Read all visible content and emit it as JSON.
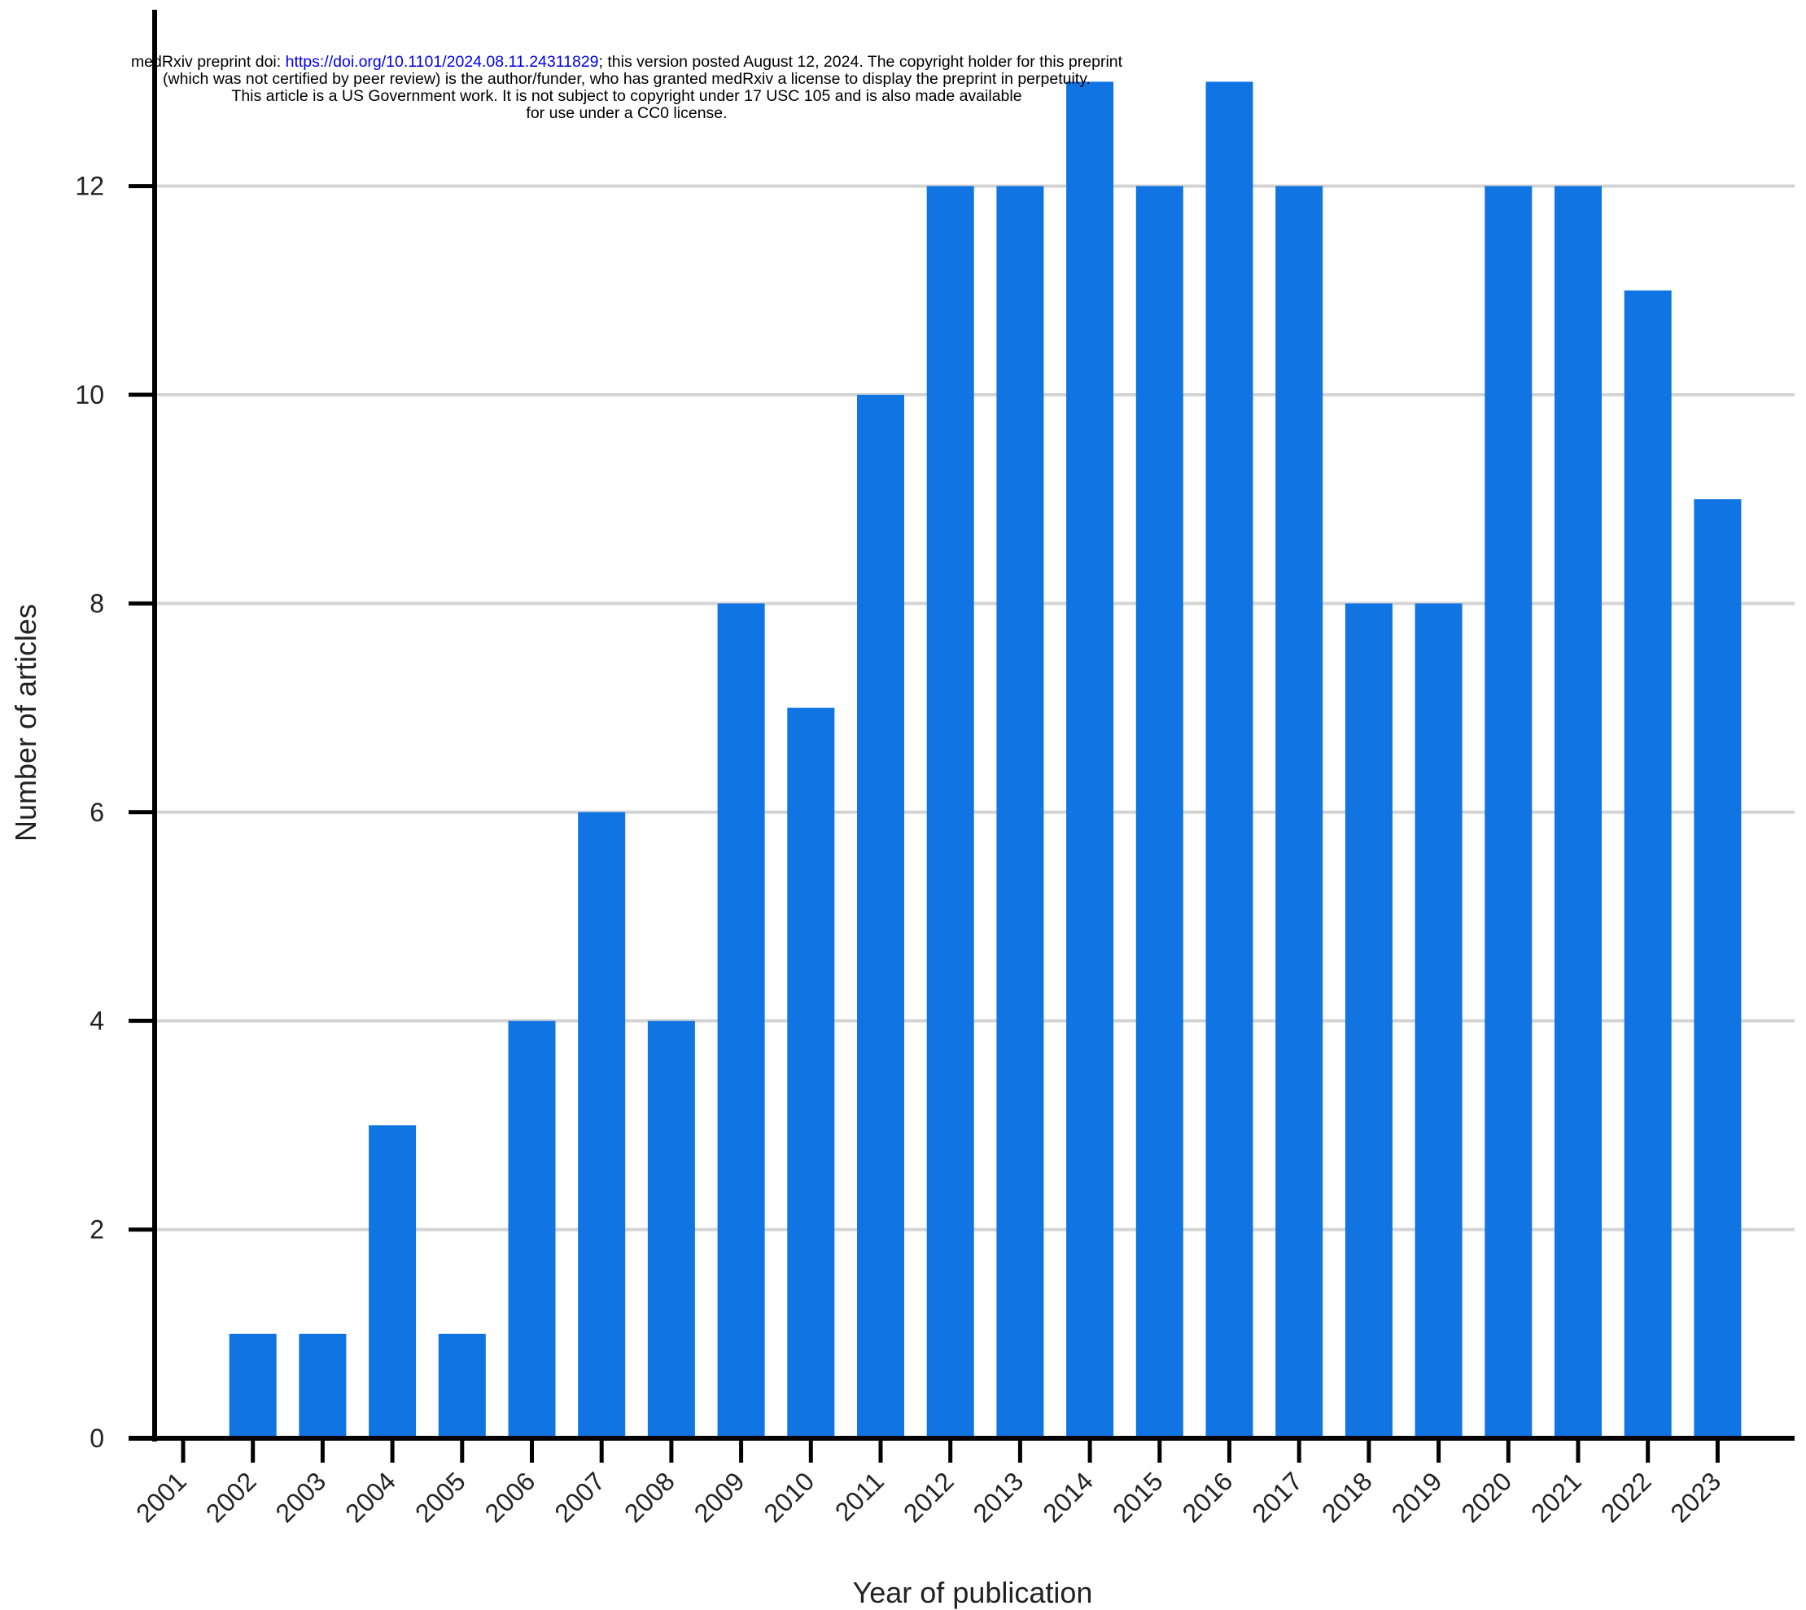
{
  "notice": {
    "line1_prefix": "medRxiv preprint doi: ",
    "doi": "https://doi.org/10.1101/2024.08.11.24311829",
    "line1_suffix": "; this version posted August 12, 2024. The copyright holder for this preprint",
    "line2": "(which was not certified by peer review) is the author/funder, who has granted medRxiv a license to display the preprint in perpetuity.",
    "line3": "This article is a US Government work. It is not subject to copyright under 17 USC 105 and is also made available",
    "line4": "for use under a CC0 license."
  },
  "colors": {
    "bar": "#1075e3",
    "grid": "#d4d4d4",
    "axis": "#000000"
  },
  "chart_data": {
    "type": "bar",
    "categories": [
      "2001",
      "2002",
      "2003",
      "2004",
      "2005",
      "2006",
      "2007",
      "2008",
      "2009",
      "2010",
      "2011",
      "2012",
      "2013",
      "2014",
      "2015",
      "2016",
      "2017",
      "2018",
      "2019",
      "2020",
      "2021",
      "2022",
      "2023"
    ],
    "values": [
      0,
      1,
      1,
      3,
      1,
      4,
      6,
      4,
      8,
      7,
      10,
      12,
      12,
      13,
      12,
      13,
      12,
      8,
      8,
      12,
      12,
      11,
      9
    ],
    "title": "",
    "xlabel": "Year of publication",
    "ylabel": "Number of articles",
    "yticks": [
      0,
      2,
      4,
      6,
      8,
      10,
      12
    ],
    "ylim": [
      0,
      13.7
    ],
    "grid": true,
    "legend": "none"
  }
}
